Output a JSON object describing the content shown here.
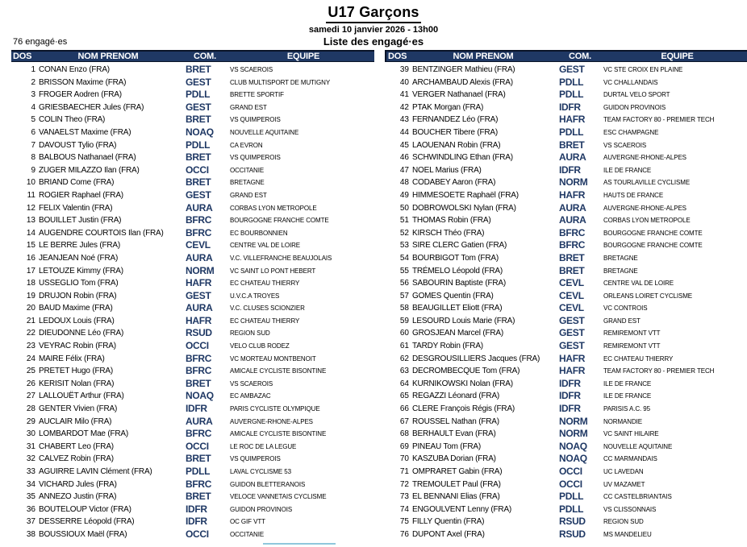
{
  "header": {
    "title": "U17 Garçons",
    "datetime": "samedi 10 janvier 2026 - 13h00",
    "count_label": "76 engagé·es",
    "list_label": "Liste des engagé·es"
  },
  "table": {
    "columns": {
      "dos": "DOS",
      "name": "NOM PRENOM",
      "com": "COM.",
      "team": "EQUIPE"
    },
    "rider_fields": [
      "dos",
      "name",
      "com",
      "team"
    ],
    "riders": [
      [
        1,
        "CONAN Enzo (FRA)",
        "BRET",
        "VS SCAEROIS"
      ],
      [
        2,
        "BRISSON Maxime (FRA)",
        "GEST",
        "CLUB MULTISPORT DE MUTIGNY"
      ],
      [
        3,
        "FROGER Aodren (FRA)",
        "PDLL",
        "BRETTE SPORTIF"
      ],
      [
        4,
        "GRIESBAECHER Jules (FRA)",
        "GEST",
        "GRAND EST"
      ],
      [
        5,
        "COLIN Theo (FRA)",
        "BRET",
        "VS QUIMPEROIS"
      ],
      [
        6,
        "VANAELST Maxime (FRA)",
        "NOAQ",
        "NOUVELLE AQUITAINE"
      ],
      [
        7,
        "DAVOUST Tylio (FRA)",
        "PDLL",
        "CA EVRON"
      ],
      [
        8,
        "BALBOUS Nathanael (FRA)",
        "BRET",
        "VS QUIMPEROIS"
      ],
      [
        9,
        "ZUGER MILAZZO Ilan (FRA)",
        "OCCI",
        "OCCITANIE"
      ],
      [
        10,
        "BRIAND Come (FRA)",
        "BRET",
        "BRETAGNE"
      ],
      [
        11,
        "ROGIER Raphael (FRA)",
        "GEST",
        "GRAND EST"
      ],
      [
        12,
        "FELIX Valentin (FRA)",
        "AURA",
        "CORBAS LYON METROPOLE"
      ],
      [
        13,
        "BOUILLET Justin (FRA)",
        "BFRC",
        "BOURGOGNE FRANCHE COMTE"
      ],
      [
        14,
        "AUGENDRE COURTOIS Ilan (FRA)",
        "BFRC",
        "EC BOURBONNIEN"
      ],
      [
        15,
        "LE BERRE Jules (FRA)",
        "CEVL",
        "CENTRE VAL DE LOIRE"
      ],
      [
        16,
        "JEANJEAN Noé (FRA)",
        "AURA",
        "V.C. VILLEFRANCHE BEAUJOLAIS"
      ],
      [
        17,
        "LETOUZE Kimmy (FRA)",
        "NORM",
        "VC SAINT LO PONT HEBERT"
      ],
      [
        18,
        "USSEGLIO Tom (FRA)",
        "HAFR",
        "EC CHATEAU THIERRY"
      ],
      [
        19,
        "DRUJON Robin (FRA)",
        "GEST",
        "U.V.C.A TROYES"
      ],
      [
        20,
        "BAUD Maxime (FRA)",
        "AURA",
        "V.C. CLUSES SCIONZIER"
      ],
      [
        21,
        "LEDOUX Louis (FRA)",
        "HAFR",
        "EC CHATEAU THIERRY"
      ],
      [
        22,
        "DIEUDONNE Léo (FRA)",
        "RSUD",
        "REGION SUD"
      ],
      [
        23,
        "VEYRAC Robin (FRA)",
        "OCCI",
        "VELO CLUB RODEZ"
      ],
      [
        24,
        "MAIRE Félix (FRA)",
        "BFRC",
        "VC MORTEAU MONTBENOIT"
      ],
      [
        25,
        "PRETET Hugo (FRA)",
        "BFRC",
        "AMICALE CYCLISTE BISONTINE"
      ],
      [
        26,
        "KERISIT Nolan (FRA)",
        "BRET",
        "VS SCAEROIS"
      ],
      [
        27,
        "LALLOUËT Arthur (FRA)",
        "NOAQ",
        "EC AMBAZAC"
      ],
      [
        28,
        "GENTER Vivien (FRA)",
        "IDFR",
        "PARIS CYCLISTE OLYMPIQUE"
      ],
      [
        29,
        "AUCLAIR Milo (FRA)",
        "AURA",
        "AUVERGNE-RHONE-ALPES"
      ],
      [
        30,
        "LOMBARDOT Mae (FRA)",
        "BFRC",
        "AMICALE CYCLISTE BISONTINE"
      ],
      [
        31,
        "CHABERT Leo (FRA)",
        "OCCI",
        "LE ROC DE LA LEGUE"
      ],
      [
        32,
        "CALVEZ Robin (FRA)",
        "BRET",
        "VS QUIMPEROIS"
      ],
      [
        33,
        "AGUIRRE LAVIN Clément (FRA)",
        "PDLL",
        "LAVAL CYCLISME 53"
      ],
      [
        34,
        "VICHARD Jules (FRA)",
        "BFRC",
        "GUIDON BLETTERANOIS"
      ],
      [
        35,
        "ANNEZO Justin (FRA)",
        "BRET",
        "VELOCE VANNETAIS CYCLISME"
      ],
      [
        36,
        "BOUTELOUP Victor (FRA)",
        "IDFR",
        "GUIDON PROVINOIS"
      ],
      [
        37,
        "DESSERRE Léopold (FRA)",
        "IDFR",
        "OC GIF VTT"
      ],
      [
        38,
        "BOUSSIOUX Maël (FRA)",
        "OCCI",
        "OCCITANIE"
      ],
      [
        39,
        "BENTZINGER Mathieu (FRA)",
        "GEST",
        "VC STE CROIX EN PLAINE"
      ],
      [
        40,
        "ARCHAMBAUD Alexis (FRA)",
        "PDLL",
        "VC CHALLANDAIS"
      ],
      [
        41,
        "VERGER Nathanael (FRA)",
        "PDLL",
        "DURTAL VELO SPORT"
      ],
      [
        42,
        "PTAK Morgan (FRA)",
        "IDFR",
        "GUIDON PROVINOIS"
      ],
      [
        43,
        "FERNANDEZ Léo (FRA)",
        "HAFR",
        "TEAM FACTORY 80 - PREMIER TECH"
      ],
      [
        44,
        "BOUCHER Tibere (FRA)",
        "PDLL",
        "ESC CHAMPAGNE"
      ],
      [
        45,
        "LAOUENAN Robin (FRA)",
        "BRET",
        "VS SCAEROIS"
      ],
      [
        46,
        "SCHWINDLING Ethan (FRA)",
        "AURA",
        "AUVERGNE-RHONE-ALPES"
      ],
      [
        47,
        "NOEL Marius (FRA)",
        "IDFR",
        "ILE DE FRANCE"
      ],
      [
        48,
        "CODABEY Aaron (FRA)",
        "NORM",
        "AS TOURLAVILLE CYCLISME"
      ],
      [
        49,
        "HIMMESOETE Raphaël (FRA)",
        "HAFR",
        "HAUTS DE FRANCE"
      ],
      [
        50,
        "DOBROWOLSKI Nylan (FRA)",
        "AURA",
        "AUVERGNE-RHONE-ALPES"
      ],
      [
        51,
        "THOMAS Robin (FRA)",
        "AURA",
        "CORBAS LYON METROPOLE"
      ],
      [
        52,
        "KIRSCH Théo (FRA)",
        "BFRC",
        "BOURGOGNE FRANCHE COMTE"
      ],
      [
        53,
        "SIRE CLERC Gatien (FRA)",
        "BFRC",
        "BOURGOGNE FRANCHE COMTE"
      ],
      [
        54,
        "BOURBIGOT Tom (FRA)",
        "BRET",
        "BRETAGNE"
      ],
      [
        55,
        "TRÉMELO Léopold (FRA)",
        "BRET",
        "BRETAGNE"
      ],
      [
        56,
        "SABOURIN Baptiste (FRA)",
        "CEVL",
        "CENTRE VAL DE LOIRE"
      ],
      [
        57,
        "GOMES Quentin (FRA)",
        "CEVL",
        "ORLEANS LOIRET CYCLISME"
      ],
      [
        58,
        "BEAUGILLET Eliott (FRA)",
        "CEVL",
        "VC CONTROIS"
      ],
      [
        59,
        "LESOURD Louis Marie (FRA)",
        "GEST",
        "GRAND EST"
      ],
      [
        60,
        "GROSJEAN Marcel (FRA)",
        "GEST",
        "REMIREMONT VTT"
      ],
      [
        61,
        "TARDY Robin (FRA)",
        "GEST",
        "REMIREMONT VTT"
      ],
      [
        62,
        "DESGROUSILLIERS Jacques (FRA)",
        "HAFR",
        "EC CHATEAU THIERRY"
      ],
      [
        63,
        "DECROMBECQUE Tom (FRA)",
        "HAFR",
        "TEAM FACTORY 80 - PREMIER TECH"
      ],
      [
        64,
        "KURNIKOWSKI Nolan (FRA)",
        "IDFR",
        "ILE DE FRANCE"
      ],
      [
        65,
        "REGAZZI Léonard (FRA)",
        "IDFR",
        "ILE DE FRANCE"
      ],
      [
        66,
        "CLERE François Régis (FRA)",
        "IDFR",
        "PARISIS A.C. 95"
      ],
      [
        67,
        "ROUSSEL Nathan (FRA)",
        "NORM",
        "NORMANDIE"
      ],
      [
        68,
        "BERHAULT Evan (FRA)",
        "NORM",
        "VC SAINT HILAIRE"
      ],
      [
        69,
        "PINEAU Tom (FRA)",
        "NOAQ",
        "NOUVELLE AQUITAINE"
      ],
      [
        70,
        "KASZUBA Dorian (FRA)",
        "NOAQ",
        "CC MARMANDAIS"
      ],
      [
        71,
        "OMPRARET Gabin (FRA)",
        "OCCI",
        "UC LAVEDAN"
      ],
      [
        72,
        "TREMOULET Paul (FRA)",
        "OCCI",
        "UV MAZAMET"
      ],
      [
        73,
        "EL BENNANI Elias (FRA)",
        "PDLL",
        "CC CASTELBRIANTAIS"
      ],
      [
        74,
        "ENGOULVENT Lenny (FRA)",
        "PDLL",
        "VS CLISSONNAIS"
      ],
      [
        75,
        "FILLY Quentin (FRA)",
        "RSUD",
        "REGION SUD"
      ],
      [
        76,
        "DUPONT Axel (FRA)",
        "RSUD",
        "MS MANDELIEU"
      ]
    ]
  },
  "colors": {
    "header_bar": "#1F3864",
    "header_text": "#FFFFFF",
    "com_code": "#1F3864",
    "body_text": "#000000",
    "bottom_line": "#8FC7DC"
  }
}
